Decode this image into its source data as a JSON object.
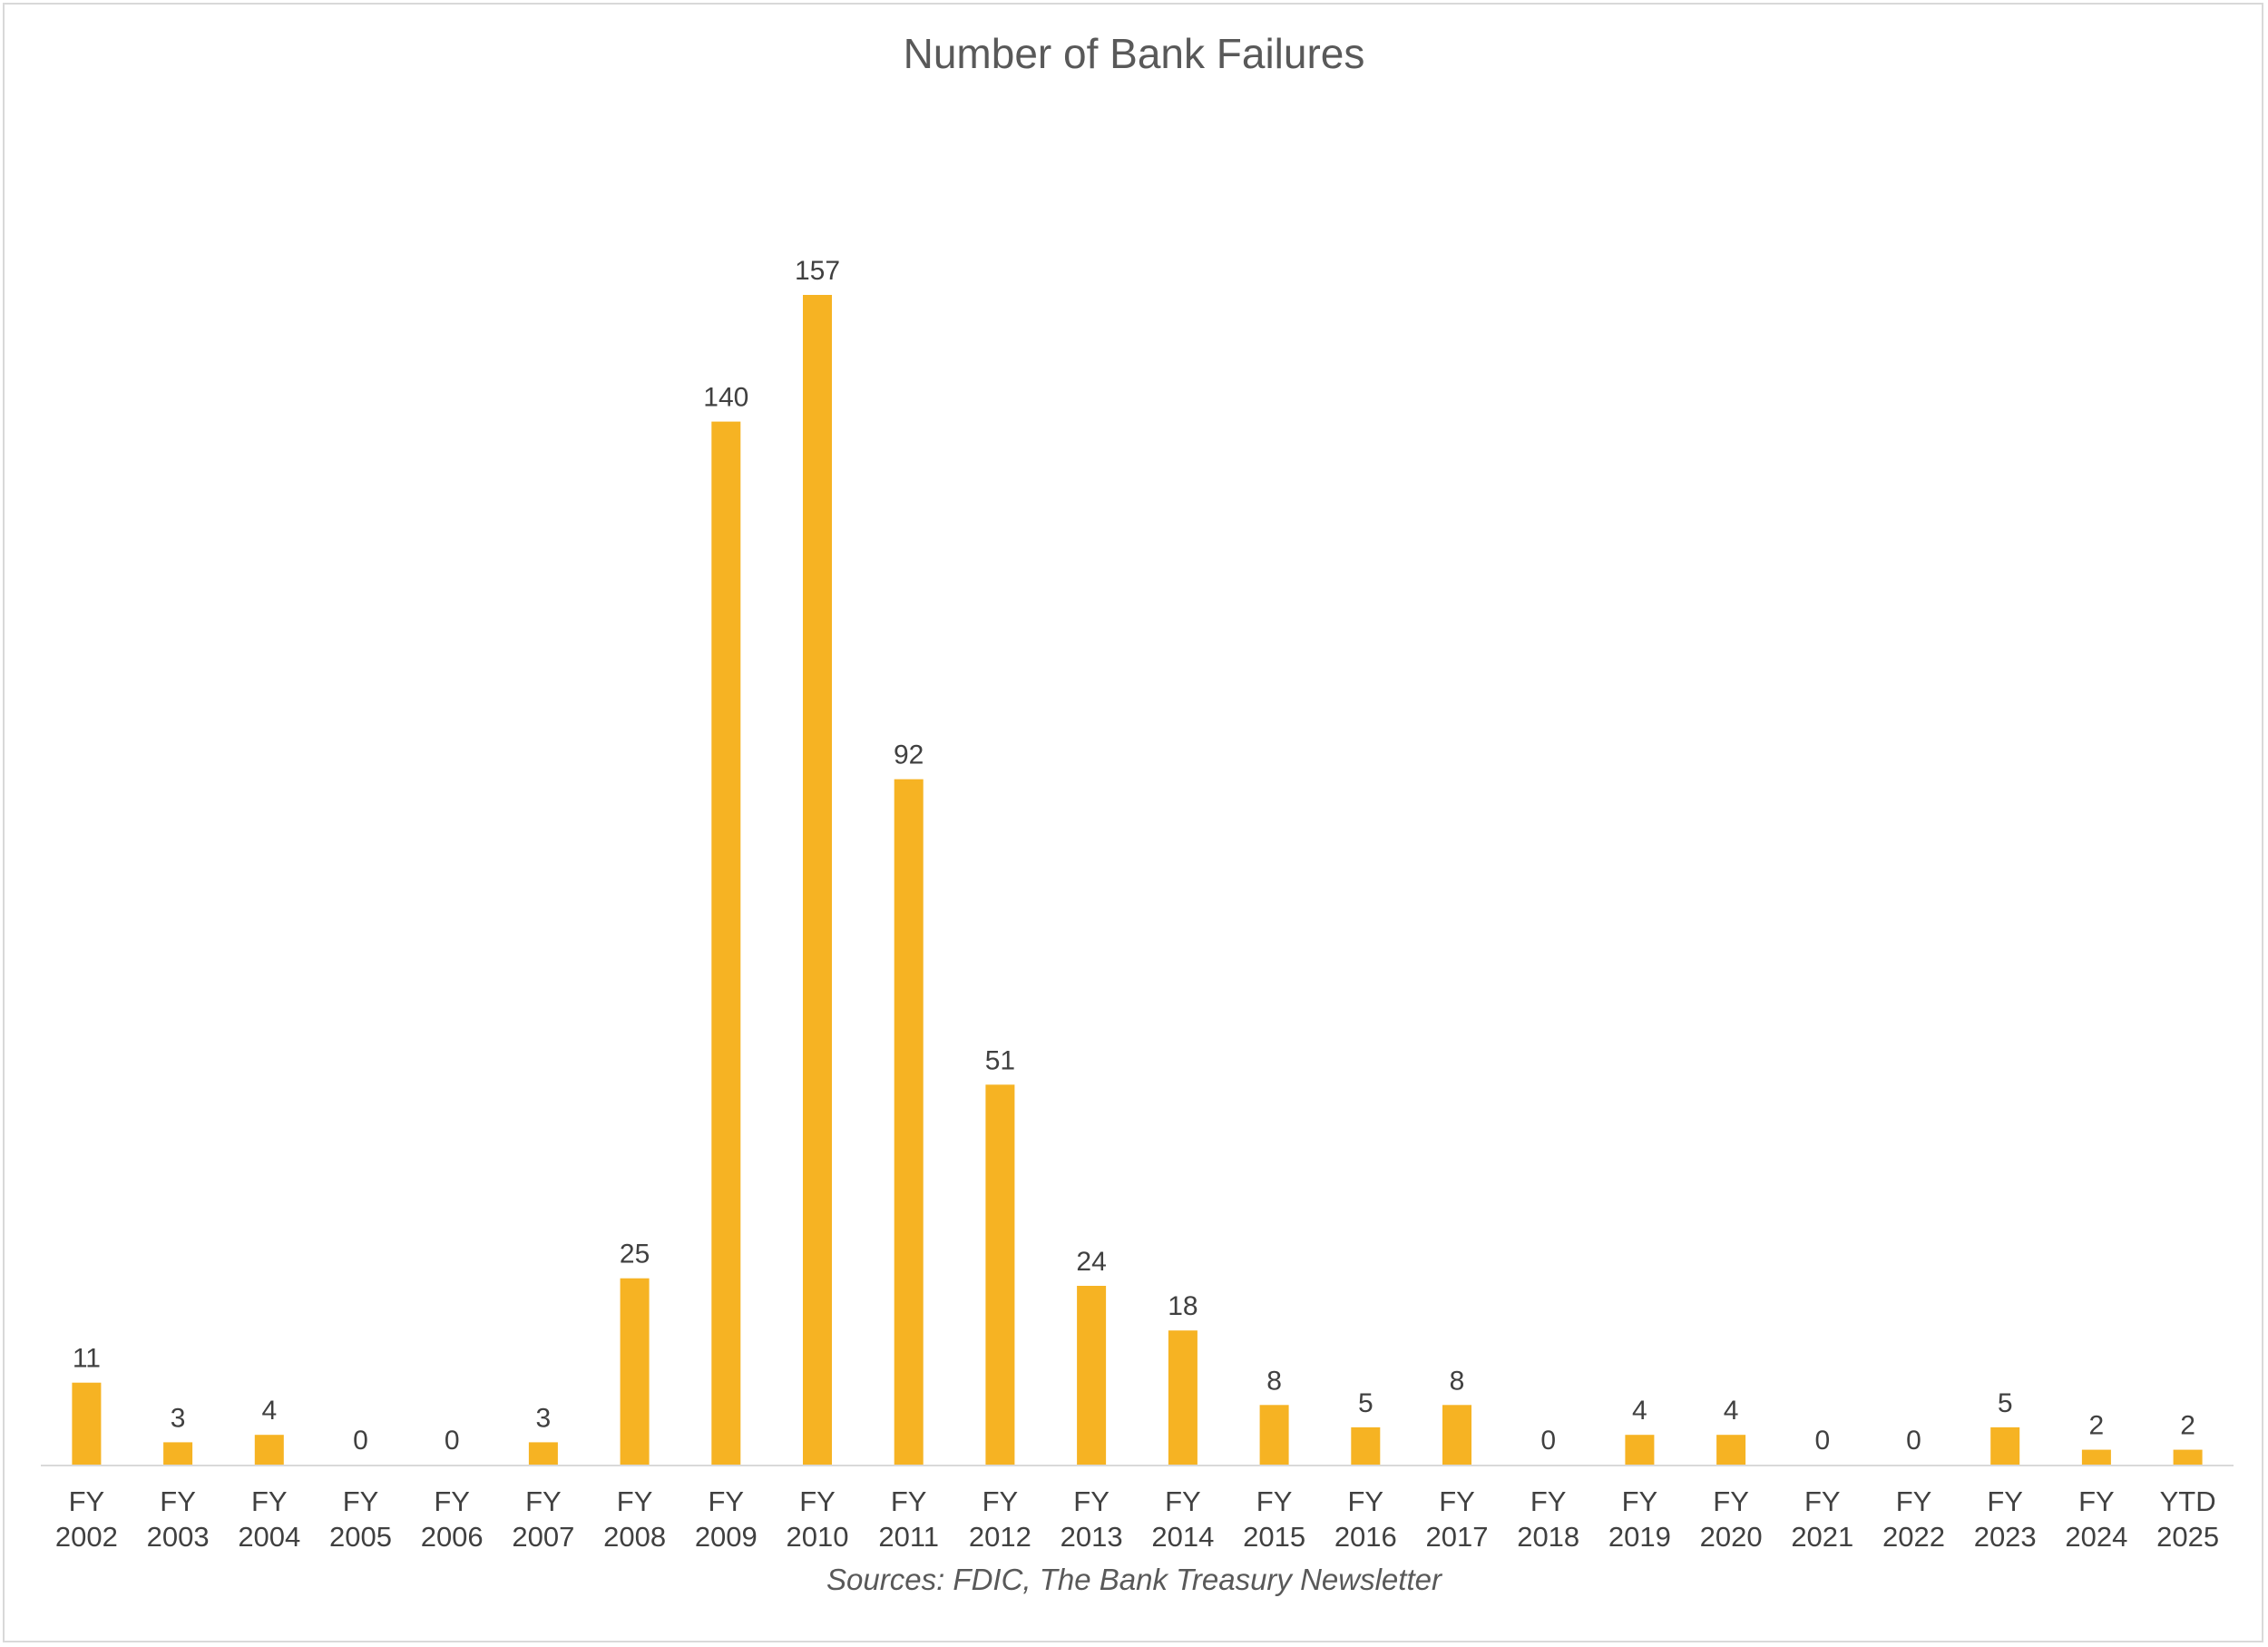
{
  "chart_data": {
    "type": "bar",
    "title": "Number of Bank Failures",
    "source": "Sources: FDIC, The Bank Treasury Newsletter",
    "categories": [
      [
        "FY",
        "2002"
      ],
      [
        "FY",
        "2003"
      ],
      [
        "FY",
        "2004"
      ],
      [
        "FY",
        "2005"
      ],
      [
        "FY",
        "2006"
      ],
      [
        "FY",
        "2007"
      ],
      [
        "FY",
        "2008"
      ],
      [
        "FY",
        "2009"
      ],
      [
        "FY",
        "2010"
      ],
      [
        "FY",
        "2011"
      ],
      [
        "FY",
        "2012"
      ],
      [
        "FY",
        "2013"
      ],
      [
        "FY",
        "2014"
      ],
      [
        "FY",
        "2015"
      ],
      [
        "FY",
        "2016"
      ],
      [
        "FY",
        "2017"
      ],
      [
        "FY",
        "2018"
      ],
      [
        "FY",
        "2019"
      ],
      [
        "FY",
        "2020"
      ],
      [
        "FY",
        "2021"
      ],
      [
        "FY",
        "2022"
      ],
      [
        "FY",
        "2023"
      ],
      [
        "FY",
        "2024"
      ],
      [
        "YTD",
        "2025"
      ]
    ],
    "values": [
      11,
      3,
      4,
      0,
      0,
      3,
      25,
      140,
      157,
      92,
      51,
      24,
      18,
      8,
      5,
      8,
      0,
      4,
      4,
      0,
      0,
      5,
      2,
      2
    ],
    "ylim": [
      0,
      157
    ],
    "grid": false,
    "legend": "none",
    "data_labels": true,
    "colors": {
      "bar": "#F6B323",
      "axis": "#d9d9d9",
      "text": "#404040",
      "title": "#595959"
    }
  }
}
